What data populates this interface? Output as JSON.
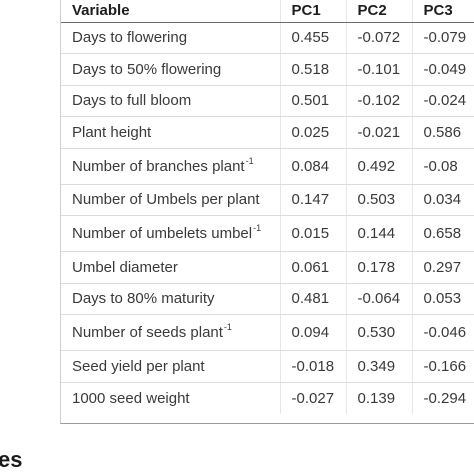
{
  "table": {
    "headers": [
      "Variable",
      "PC1",
      "PC2",
      "PC3"
    ],
    "rows": [
      {
        "variable": "Days to flowering",
        "sup": "",
        "pc1": "0.455",
        "pc2": "-0.072",
        "pc3": "-0.079"
      },
      {
        "variable": "Days to 50% flowering",
        "sup": "",
        "pc1": "0.518",
        "pc2": "-0.101",
        "pc3": "-0.049"
      },
      {
        "variable": "Days to full bloom",
        "sup": "",
        "pc1": "0.501",
        "pc2": "-0.102",
        "pc3": "-0.024"
      },
      {
        "variable": "Plant height",
        "sup": "",
        "pc1": "0.025",
        "pc2": "-0.021",
        "pc3": "0.586"
      },
      {
        "variable": "Number of branches plant",
        "sup": "-1",
        "pc1": "0.084",
        "pc2": "0.492",
        "pc3": "-0.08"
      },
      {
        "variable": "Number of Umbels per plant",
        "sup": "",
        "pc1": "0.147",
        "pc2": "0.503",
        "pc3": "0.034"
      },
      {
        "variable": "Number of umbelets umbel",
        "sup": "-1",
        "pc1": "0.015",
        "pc2": "0.144",
        "pc3": "0.658"
      },
      {
        "variable": "Umbel diameter",
        "sup": "",
        "pc1": "0.061",
        "pc2": "0.178",
        "pc3": "0.297"
      },
      {
        "variable": "Days to 80% maturity",
        "sup": "",
        "pc1": "0.481",
        "pc2": "-0.064",
        "pc3": "0.053"
      },
      {
        "variable": "Number of seeds plant",
        "sup": "-1",
        "pc1": "0.094",
        "pc2": "0.530",
        "pc3": "-0.046"
      },
      {
        "variable": "Seed yield per plant",
        "sup": "",
        "pc1": "-0.018",
        "pc2": "0.349",
        "pc3": "-0.166"
      },
      {
        "variable": "1000 seed weight",
        "sup": "",
        "pc1": "-0.027",
        "pc2": "0.139",
        "pc3": "-0.294"
      }
    ]
  },
  "section_heading": "es"
}
